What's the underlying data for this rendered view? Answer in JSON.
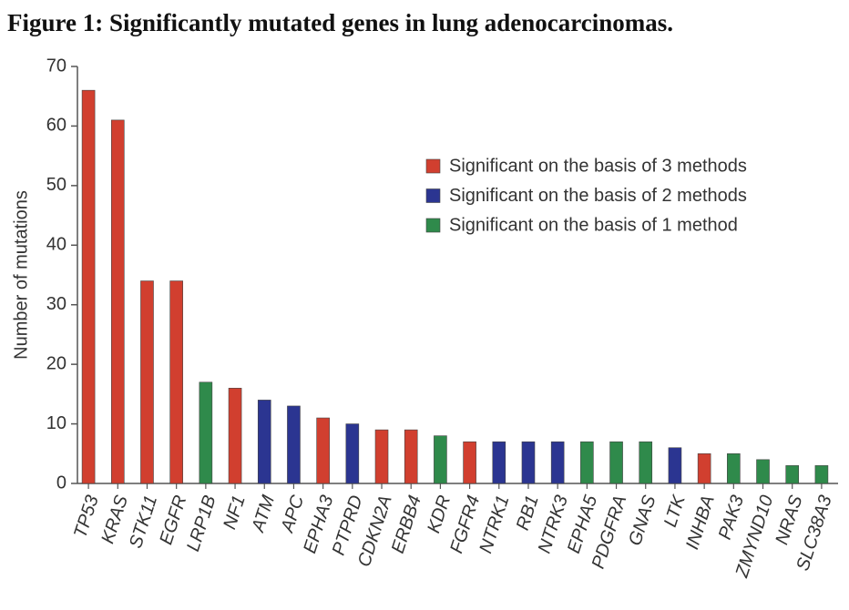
{
  "chart_data": {
    "type": "bar",
    "title": "Figure 1: Significantly mutated genes in lung adenocarcinomas.",
    "y_label": "Number of mutations",
    "categories": [
      "TP53",
      "KRAS",
      "STK11",
      "EGFR",
      "LRP1B",
      "NF1",
      "ATM",
      "APC",
      "EPHA3",
      "PTPRD",
      "CDKN2A",
      "ERBB4",
      "KDR",
      "FGFR4",
      "NTRK1",
      "RB1",
      "NTRK3",
      "EPHA5",
      "PDGFRA",
      "GNAS",
      "LTK",
      "INHBA",
      "PAK3",
      "ZMYND10",
      "NRAS",
      "SLC38A3"
    ],
    "series": [
      {
        "name": "Significant on the basis of 3 methods",
        "color": "#d13f2f",
        "values": [
          66,
          61,
          34,
          34,
          null,
          16,
          null,
          null,
          11,
          null,
          9,
          9,
          null,
          7,
          null,
          null,
          null,
          null,
          null,
          null,
          null,
          5,
          null,
          null,
          null,
          null
        ]
      },
      {
        "name": "Significant on the basis of 2 methods",
        "color": "#2b3591",
        "values": [
          null,
          null,
          null,
          null,
          null,
          null,
          14,
          13,
          null,
          10,
          null,
          null,
          null,
          null,
          7,
          7,
          7,
          null,
          null,
          null,
          6,
          null,
          null,
          null,
          null,
          null
        ]
      },
      {
        "name": "Significant on the basis of 1 method",
        "color": "#2f8a4b",
        "values": [
          null,
          null,
          null,
          null,
          17,
          null,
          null,
          null,
          null,
          null,
          null,
          null,
          8,
          null,
          null,
          null,
          null,
          7,
          7,
          7,
          null,
          null,
          5,
          4,
          3,
          3
        ]
      }
    ],
    "ylim": [
      0,
      70
    ],
    "yticks": [
      0,
      10,
      20,
      30,
      40,
      50,
      60,
      70
    ],
    "legend": "upper right"
  }
}
